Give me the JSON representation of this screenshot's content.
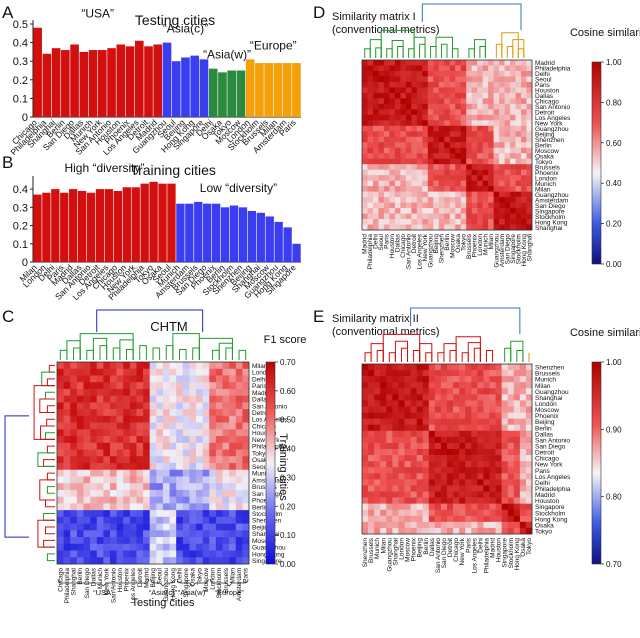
{
  "panels": {
    "A": {
      "letter": "A"
    },
    "B": {
      "letter": "B"
    },
    "C": {
      "letter": "C"
    },
    "D": {
      "letter": "D"
    },
    "E": {
      "letter": "E"
    }
  },
  "chart_data": [
    {
      "id": "A",
      "type": "bar",
      "title": "Testing cities",
      "categories": [
        "Chicago",
        "Philadelphia",
        "Shanghai",
        "Berlin",
        "San Diego",
        "Dallas",
        "Munich",
        "New York",
        "San Antonio",
        "Houston",
        "Phoenix",
        "Los Angeles",
        "Detroit",
        "Madrid",
        "Guangzhou",
        "Seoul",
        "Beijing",
        "Hong Kong",
        "Singapore",
        "Delhi",
        "Osaka",
        "Tokyo",
        "Moscow",
        "London",
        "Stockholm",
        "Brussels",
        "Milan",
        "Amsterdam",
        "Paris"
      ],
      "values": [
        0.48,
        0.34,
        0.37,
        0.36,
        0.39,
        0.35,
        0.36,
        0.36,
        0.37,
        0.39,
        0.38,
        0.41,
        0.38,
        0.39,
        0.4,
        0.3,
        0.32,
        0.33,
        0.31,
        0.26,
        0.24,
        0.25,
        0.25,
        0.31,
        0.29,
        0.29,
        0.29,
        0.29,
        0.29
      ],
      "groups": [
        {
          "label": "“USA”",
          "start": 0,
          "end": 13,
          "color": "#d31010"
        },
        {
          "label": "“Asia(c)”",
          "start": 14,
          "end": 18,
          "color": "#3b3ef0"
        },
        {
          "label": "“Asia(w)”",
          "start": 19,
          "end": 22,
          "color": "#2b8a3e"
        },
        {
          "label": "“Europe”",
          "start": 23,
          "end": 28,
          "color": "#f5a00a"
        }
      ],
      "ylim": [
        0,
        0.5
      ],
      "yticks": [
        0,
        0.1,
        0.2,
        0.3,
        0.4,
        0.5
      ]
    },
    {
      "id": "B",
      "type": "bar",
      "title": "Training cities",
      "categories": [
        "Milan",
        "London",
        "Delhi",
        "Paris",
        "Madrid",
        "Dallas",
        "San Antonio",
        "Detroit",
        "Los Angeles",
        "Chicago",
        "Houston",
        "New York",
        "Philadelphia",
        "Tokyo",
        "Osaka",
        "Seoul",
        "Munich",
        "Amsterdam",
        "Brussels",
        "San Diego",
        "Phoenix",
        "Berlin",
        "Stockholm",
        "Shenzhen",
        "Beijing",
        "Shanghai",
        "Moscow",
        "Guangzhou",
        "Hong Kong",
        "Singapore"
      ],
      "values": [
        0.37,
        0.38,
        0.4,
        0.38,
        0.4,
        0.39,
        0.38,
        0.4,
        0.4,
        0.39,
        0.41,
        0.41,
        0.43,
        0.44,
        0.43,
        0.43,
        0.32,
        0.32,
        0.33,
        0.32,
        0.32,
        0.3,
        0.31,
        0.3,
        0.28,
        0.27,
        0.25,
        0.22,
        0.19,
        0.1
      ],
      "groups": [
        {
          "label": "High “diversity”",
          "start": 0,
          "end": 15,
          "color": "#d31010"
        },
        {
          "label": "Low “diversity”",
          "start": 16,
          "end": 29,
          "color": "#3b3ef0"
        }
      ],
      "ylim": [
        0,
        0.45
      ],
      "yticks": [
        0,
        0.1,
        0.2,
        0.3,
        0.4
      ]
    },
    {
      "id": "C",
      "type": "heatmap",
      "title": "CHTM",
      "colorbar_title": "F1 score",
      "xlabel": "Testing cities",
      "ylabel": "Training cities",
      "columns": [
        "Chicago",
        "Philadelphia",
        "Shanghai",
        "Berlin",
        "San Diego",
        "Dallas",
        "Munich",
        "New York",
        "San Antonio",
        "Houston",
        "Phoenix",
        "Los Angeles",
        "Detroit",
        "Madrid",
        "Beijing",
        "Seoul",
        "Guangzhou",
        "Hong Kong",
        "Delhi",
        "Singapore",
        "Osaka",
        "Tokyo",
        "Moscow",
        "London",
        "Stockholm",
        "Brussels",
        "Milan",
        "Amsterdam",
        "Paris"
      ],
      "rows": [
        "Milan",
        "London",
        "Delhi",
        "Paris",
        "Madrid",
        "Dallas",
        "San Antonio",
        "Detroit",
        "Los Angeles",
        "Chicago",
        "Houston",
        "New York",
        "Philadelphia",
        "Tokyo",
        "Osaka",
        "Seoul",
        "Munich",
        "Amsterdam",
        "Brussels",
        "San Diego",
        "Phoenix",
        "Berlin",
        "Stockholm",
        "Shenzhen",
        "Beijing",
        "Shanghai",
        "Moscow",
        "Guangzhou",
        "Hong Kong",
        "Singapore"
      ],
      "group_labels": [
        "“USA”",
        "“Asia(c)”",
        "“Asia(w)”",
        "“Europe”"
      ],
      "vmin": 0.0,
      "vmax": 0.7,
      "cticks": [
        "0.00",
        "0.10",
        "0.20",
        "0.30",
        "0.40",
        "0.50",
        "0.60",
        "0.70"
      ]
    },
    {
      "id": "D",
      "type": "heatmap",
      "title": "Similarity matrix I",
      "subtitle": "(conventional metrics)",
      "colorbar_title": "Cosine similarity",
      "labels": [
        "Madrid",
        "Philadelphia",
        "Delhi",
        "Seoul",
        "Paris",
        "Houston",
        "Dallas",
        "Chicago",
        "San Antonio",
        "Detroit",
        "Los Angeles",
        "New York",
        "Guangzhou",
        "Beijing",
        "Shenzhen",
        "Berlin",
        "Moscow",
        "Osaka",
        "Tokyo",
        "Brussels",
        "Phoenix",
        "London",
        "Munich",
        "Milan",
        "Guangzhou",
        "Amsterdam",
        "San Diego",
        "Singapore",
        "Stockholm",
        "Hong Kong",
        "Shanghai"
      ],
      "vmin": 0.0,
      "vmax": 1.0,
      "cticks": [
        "0.00",
        "0.20",
        "0.40",
        "0.60",
        "0.80",
        "1.00"
      ]
    },
    {
      "id": "E",
      "type": "heatmap",
      "title": "Similarity matrix II",
      "subtitle": "(conventional metrics)",
      "colorbar_title": "Cosine similarity",
      "labels": [
        "Shenzhen",
        "Brussels",
        "Munich",
        "Milan",
        "Guangzhou",
        "Shanghai",
        "London",
        "Moscow",
        "Phoenix",
        "Beijing",
        "Berlin",
        "Dallas",
        "San Antonio",
        "San Diego",
        "Detroit",
        "Chicago",
        "New York",
        "Paris",
        "Los Angeles",
        "Delhi",
        "Philadelphia",
        "Madrid",
        "Houston",
        "Singapore",
        "Stockholm",
        "Hong Kong",
        "Osaka",
        "Tokyo"
      ],
      "vmin": 0.65,
      "vmax": 1.0,
      "cticks": [
        "0.70",
        "0.80",
        "0.90",
        "1.00"
      ]
    }
  ]
}
